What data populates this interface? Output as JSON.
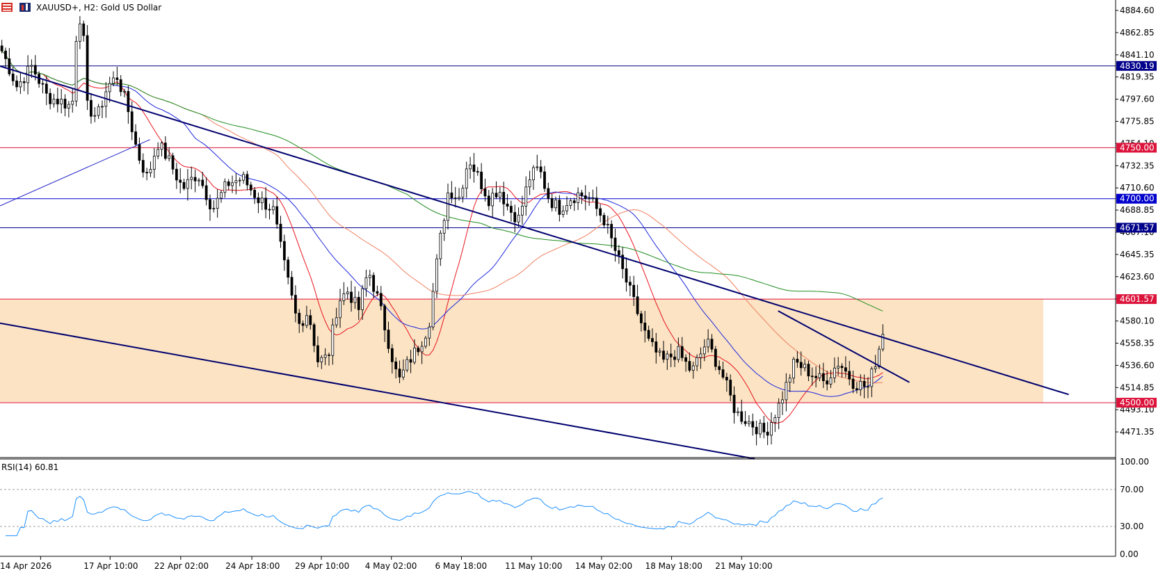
{
  "header": {
    "symbol_title": "XAUUSD+, H2:  Gold US Dollar",
    "icon_names": [
      "chart-type-icon",
      "bars-icon"
    ]
  },
  "chart_data": [
    {
      "type": "candlestick",
      "symbol": "XAUUSD+",
      "timeframe": "H2",
      "title": "XAUUSD+, H2:  Gold US Dollar",
      "ylim": [
        4445,
        4900
      ],
      "x_tick_labels": [
        "14 Apr 2026",
        "17 Apr 10:00",
        "22 Apr 02:00",
        "24 Apr 18:00",
        "29 Apr 10:00",
        "4 May 02:00",
        "6 May 18:00",
        "11 May 10:00",
        "14 May 02:00",
        "18 May 18:00",
        "21 May 10:00"
      ],
      "y_tick_labels": [
        4884.6,
        4862.85,
        4841.1,
        4819.35,
        4797.6,
        4775.85,
        4754.1,
        4732.35,
        4710.6,
        4688.85,
        4667.1,
        4645.35,
        4623.6,
        4601.85,
        4580.1,
        4558.35,
        4536.6,
        4514.85,
        4493.1,
        4471.35
      ],
      "horizontal_levels": [
        {
          "value": 4830.19,
          "label": "4830.19",
          "color": "#00008b"
        },
        {
          "value": 4750.0,
          "label": "4750.00",
          "color": "#dc143c"
        },
        {
          "value": 4700.0,
          "label": "4700.00",
          "color": "#0000cd"
        },
        {
          "value": 4671.57,
          "label": "4671.57",
          "color": "#00008b"
        },
        {
          "value": 4601.57,
          "label": "4601.57",
          "color": "#dc143c"
        },
        {
          "value": 4500.0,
          "label": "4500.00",
          "color": "#dc143c"
        }
      ],
      "zone": {
        "from": 4500.0,
        "to": 4601.57,
        "color": "#fbe3c4"
      },
      "trendlines": [
        {
          "from": [
            0,
            4830
          ],
          "to": [
            228,
            4508
          ],
          "note": "upper channel",
          "color": "#00006e"
        },
        {
          "from": [
            0,
            4578
          ],
          "to": [
            161,
            4445
          ],
          "note": "lower channel",
          "color": "#00006e"
        },
        {
          "from": [
            0,
            4693
          ],
          "to": [
            32,
            4758
          ],
          "note": "support line",
          "color": "#1c1cc8"
        },
        {
          "from": [
            166,
            4590
          ],
          "to": [
            194,
            4520
          ],
          "note": "short-term resistance",
          "color": "#00006e"
        }
      ],
      "moving_averages": [
        {
          "color": "#e8141e"
        },
        {
          "color": "#1e28dc"
        },
        {
          "color": "#f08060"
        },
        {
          "color": "#1e8c1e"
        }
      ],
      "last_close": 4567
    },
    {
      "type": "line",
      "indicator": "RSI(14)",
      "title": "RSI(14) 60.81",
      "value": 60.81,
      "ylim": [
        0,
        100
      ],
      "y_tick_labels": [
        "100.00",
        "70.00",
        "30.00",
        "0.00"
      ],
      "levels": [
        70,
        30
      ],
      "color": "#1e90ff"
    }
  ]
}
